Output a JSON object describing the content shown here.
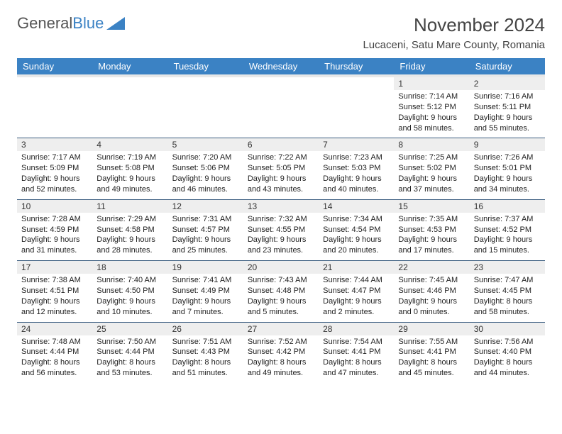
{
  "logo": {
    "text1": "General",
    "text2": "Blue",
    "triangle_color": "#3b82c4"
  },
  "title": "November 2024",
  "location": "Lucaceni, Satu Mare County, Romania",
  "day_headers": [
    "Sunday",
    "Monday",
    "Tuesday",
    "Wednesday",
    "Thursday",
    "Friday",
    "Saturday"
  ],
  "colors": {
    "header_bg": "#3b82c4",
    "header_fg": "#ffffff",
    "daynum_bg": "#eeeeee",
    "row_border": "#3b5d80",
    "body_text": "#222222"
  },
  "fonts": {
    "title_size": 26,
    "location_size": 15,
    "header_size": 13,
    "daynum_size": 12,
    "detail_size": 11
  },
  "weeks": [
    [
      null,
      null,
      null,
      null,
      null,
      {
        "n": "1",
        "sr": "Sunrise: 7:14 AM",
        "ss": "Sunset: 5:12 PM",
        "d1": "Daylight: 9 hours",
        "d2": "and 58 minutes."
      },
      {
        "n": "2",
        "sr": "Sunrise: 7:16 AM",
        "ss": "Sunset: 5:11 PM",
        "d1": "Daylight: 9 hours",
        "d2": "and 55 minutes."
      }
    ],
    [
      {
        "n": "3",
        "sr": "Sunrise: 7:17 AM",
        "ss": "Sunset: 5:09 PM",
        "d1": "Daylight: 9 hours",
        "d2": "and 52 minutes."
      },
      {
        "n": "4",
        "sr": "Sunrise: 7:19 AM",
        "ss": "Sunset: 5:08 PM",
        "d1": "Daylight: 9 hours",
        "d2": "and 49 minutes."
      },
      {
        "n": "5",
        "sr": "Sunrise: 7:20 AM",
        "ss": "Sunset: 5:06 PM",
        "d1": "Daylight: 9 hours",
        "d2": "and 46 minutes."
      },
      {
        "n": "6",
        "sr": "Sunrise: 7:22 AM",
        "ss": "Sunset: 5:05 PM",
        "d1": "Daylight: 9 hours",
        "d2": "and 43 minutes."
      },
      {
        "n": "7",
        "sr": "Sunrise: 7:23 AM",
        "ss": "Sunset: 5:03 PM",
        "d1": "Daylight: 9 hours",
        "d2": "and 40 minutes."
      },
      {
        "n": "8",
        "sr": "Sunrise: 7:25 AM",
        "ss": "Sunset: 5:02 PM",
        "d1": "Daylight: 9 hours",
        "d2": "and 37 minutes."
      },
      {
        "n": "9",
        "sr": "Sunrise: 7:26 AM",
        "ss": "Sunset: 5:01 PM",
        "d1": "Daylight: 9 hours",
        "d2": "and 34 minutes."
      }
    ],
    [
      {
        "n": "10",
        "sr": "Sunrise: 7:28 AM",
        "ss": "Sunset: 4:59 PM",
        "d1": "Daylight: 9 hours",
        "d2": "and 31 minutes."
      },
      {
        "n": "11",
        "sr": "Sunrise: 7:29 AM",
        "ss": "Sunset: 4:58 PM",
        "d1": "Daylight: 9 hours",
        "d2": "and 28 minutes."
      },
      {
        "n": "12",
        "sr": "Sunrise: 7:31 AM",
        "ss": "Sunset: 4:57 PM",
        "d1": "Daylight: 9 hours",
        "d2": "and 25 minutes."
      },
      {
        "n": "13",
        "sr": "Sunrise: 7:32 AM",
        "ss": "Sunset: 4:55 PM",
        "d1": "Daylight: 9 hours",
        "d2": "and 23 minutes."
      },
      {
        "n": "14",
        "sr": "Sunrise: 7:34 AM",
        "ss": "Sunset: 4:54 PM",
        "d1": "Daylight: 9 hours",
        "d2": "and 20 minutes."
      },
      {
        "n": "15",
        "sr": "Sunrise: 7:35 AM",
        "ss": "Sunset: 4:53 PM",
        "d1": "Daylight: 9 hours",
        "d2": "and 17 minutes."
      },
      {
        "n": "16",
        "sr": "Sunrise: 7:37 AM",
        "ss": "Sunset: 4:52 PM",
        "d1": "Daylight: 9 hours",
        "d2": "and 15 minutes."
      }
    ],
    [
      {
        "n": "17",
        "sr": "Sunrise: 7:38 AM",
        "ss": "Sunset: 4:51 PM",
        "d1": "Daylight: 9 hours",
        "d2": "and 12 minutes."
      },
      {
        "n": "18",
        "sr": "Sunrise: 7:40 AM",
        "ss": "Sunset: 4:50 PM",
        "d1": "Daylight: 9 hours",
        "d2": "and 10 minutes."
      },
      {
        "n": "19",
        "sr": "Sunrise: 7:41 AM",
        "ss": "Sunset: 4:49 PM",
        "d1": "Daylight: 9 hours",
        "d2": "and 7 minutes."
      },
      {
        "n": "20",
        "sr": "Sunrise: 7:43 AM",
        "ss": "Sunset: 4:48 PM",
        "d1": "Daylight: 9 hours",
        "d2": "and 5 minutes."
      },
      {
        "n": "21",
        "sr": "Sunrise: 7:44 AM",
        "ss": "Sunset: 4:47 PM",
        "d1": "Daylight: 9 hours",
        "d2": "and 2 minutes."
      },
      {
        "n": "22",
        "sr": "Sunrise: 7:45 AM",
        "ss": "Sunset: 4:46 PM",
        "d1": "Daylight: 9 hours",
        "d2": "and 0 minutes."
      },
      {
        "n": "23",
        "sr": "Sunrise: 7:47 AM",
        "ss": "Sunset: 4:45 PM",
        "d1": "Daylight: 8 hours",
        "d2": "and 58 minutes."
      }
    ],
    [
      {
        "n": "24",
        "sr": "Sunrise: 7:48 AM",
        "ss": "Sunset: 4:44 PM",
        "d1": "Daylight: 8 hours",
        "d2": "and 56 minutes."
      },
      {
        "n": "25",
        "sr": "Sunrise: 7:50 AM",
        "ss": "Sunset: 4:44 PM",
        "d1": "Daylight: 8 hours",
        "d2": "and 53 minutes."
      },
      {
        "n": "26",
        "sr": "Sunrise: 7:51 AM",
        "ss": "Sunset: 4:43 PM",
        "d1": "Daylight: 8 hours",
        "d2": "and 51 minutes."
      },
      {
        "n": "27",
        "sr": "Sunrise: 7:52 AM",
        "ss": "Sunset: 4:42 PM",
        "d1": "Daylight: 8 hours",
        "d2": "and 49 minutes."
      },
      {
        "n": "28",
        "sr": "Sunrise: 7:54 AM",
        "ss": "Sunset: 4:41 PM",
        "d1": "Daylight: 8 hours",
        "d2": "and 47 minutes."
      },
      {
        "n": "29",
        "sr": "Sunrise: 7:55 AM",
        "ss": "Sunset: 4:41 PM",
        "d1": "Daylight: 8 hours",
        "d2": "and 45 minutes."
      },
      {
        "n": "30",
        "sr": "Sunrise: 7:56 AM",
        "ss": "Sunset: 4:40 PM",
        "d1": "Daylight: 8 hours",
        "d2": "and 44 minutes."
      }
    ]
  ]
}
